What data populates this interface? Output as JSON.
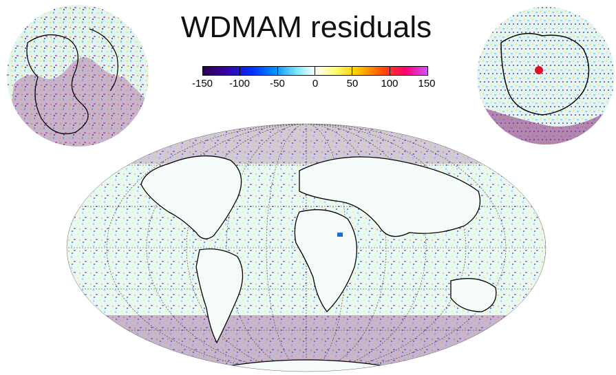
{
  "title": "WDMAM residuals",
  "colorbar": {
    "labels": [
      "-150",
      "-100",
      "-50",
      "0",
      "50",
      "100",
      "150"
    ],
    "colors": [
      "#2a0050",
      "#4a00c0",
      "#0040ff",
      "#00a0ff",
      "#a0f0ff",
      "#ffffff",
      "#ffff60",
      "#ffc000",
      "#ff4000",
      "#ff0080",
      "#e040ff"
    ]
  },
  "maps": {
    "main": "mollweide-world",
    "north": "north-polar",
    "south": "south-polar"
  }
}
